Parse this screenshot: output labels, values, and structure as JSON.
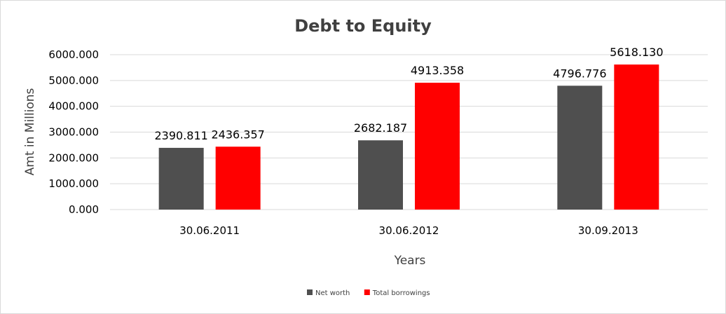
{
  "chart_data": {
    "type": "bar",
    "title": "Debt to Equity",
    "xlabel": "Years",
    "ylabel": "Amt in Millions",
    "categories": [
      "30.06.2011",
      "30.06.2012",
      "30.09.2013"
    ],
    "series": [
      {
        "name": "Net worth",
        "color": "#4f4f4f",
        "values": [
          2390.811,
          2682.187,
          4796.776
        ],
        "labels": [
          "2390.811",
          "2682.187",
          "4796.776"
        ]
      },
      {
        "name": "Total borrowings",
        "color": "#ff0000",
        "values": [
          2436.357,
          4913.358,
          5618.13
        ],
        "labels": [
          "2436.357",
          "4913.358",
          "5618.130"
        ]
      }
    ],
    "yticks": [
      "0.000",
      "1000.000",
      "2000.000",
      "3000.000",
      "4000.000",
      "5000.000",
      "6000.000"
    ],
    "ylim": [
      0,
      6000
    ],
    "grid": true,
    "legend": "bottom"
  }
}
